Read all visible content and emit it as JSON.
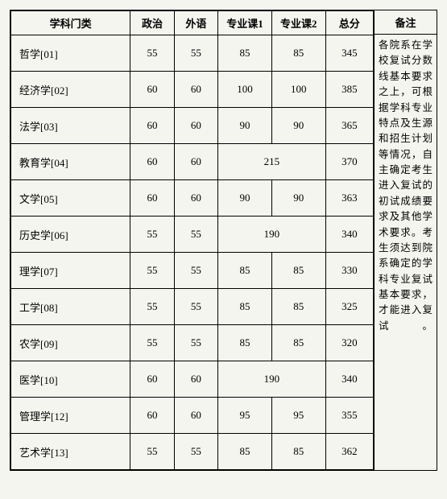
{
  "headers": {
    "subject": "学科门类",
    "politics": "政治",
    "foreign": "外语",
    "major1": "专业课1",
    "major2": "专业课2",
    "total": "总分",
    "notes": "备注"
  },
  "rows": [
    {
      "subject": "哲学[01]",
      "politics": "55",
      "foreign": "55",
      "major1": "85",
      "major2": "85",
      "total": "345",
      "merged": false
    },
    {
      "subject": "经济学[02]",
      "politics": "60",
      "foreign": "60",
      "major1": "100",
      "major2": "100",
      "total": "385",
      "merged": false
    },
    {
      "subject": "法学[03]",
      "politics": "60",
      "foreign": "60",
      "major1": "90",
      "major2": "90",
      "total": "365",
      "merged": false
    },
    {
      "subject": "教育学[04]",
      "politics": "60",
      "foreign": "60",
      "major1": "215",
      "major2": "",
      "total": "370",
      "merged": true
    },
    {
      "subject": "文学[05]",
      "politics": "60",
      "foreign": "60",
      "major1": "90",
      "major2": "90",
      "total": "363",
      "merged": false
    },
    {
      "subject": "历史学[06]",
      "politics": "55",
      "foreign": "55",
      "major1": "190",
      "major2": "",
      "total": "340",
      "merged": true
    },
    {
      "subject": "理学[07]",
      "politics": "55",
      "foreign": "55",
      "major1": "85",
      "major2": "85",
      "total": "330",
      "merged": false
    },
    {
      "subject": "工学[08]",
      "politics": "55",
      "foreign": "55",
      "major1": "85",
      "major2": "85",
      "total": "325",
      "merged": false
    },
    {
      "subject": "农学[09]",
      "politics": "55",
      "foreign": "55",
      "major1": "85",
      "major2": "85",
      "total": "320",
      "merged": false
    },
    {
      "subject": "医学[10]",
      "politics": "60",
      "foreign": "60",
      "major1": "190",
      "major2": "",
      "total": "340",
      "merged": true
    },
    {
      "subject": "管理学[12]",
      "politics": "60",
      "foreign": "60",
      "major1": "95",
      "major2": "95",
      "total": "355",
      "merged": false
    },
    {
      "subject": "艺术学[13]",
      "politics": "55",
      "foreign": "55",
      "major1": "85",
      "major2": "85",
      "total": "362",
      "merged": false
    }
  ],
  "notes_text": "各院系在学校复试分数线基本要求之上，可根据学科专业特点及生源和招生计划等情况，自主确定考生进入复试的初试成绩要求及其他学术要求。考生须达到院系确定的学科专业复试基本要求，才能进入复试。"
}
